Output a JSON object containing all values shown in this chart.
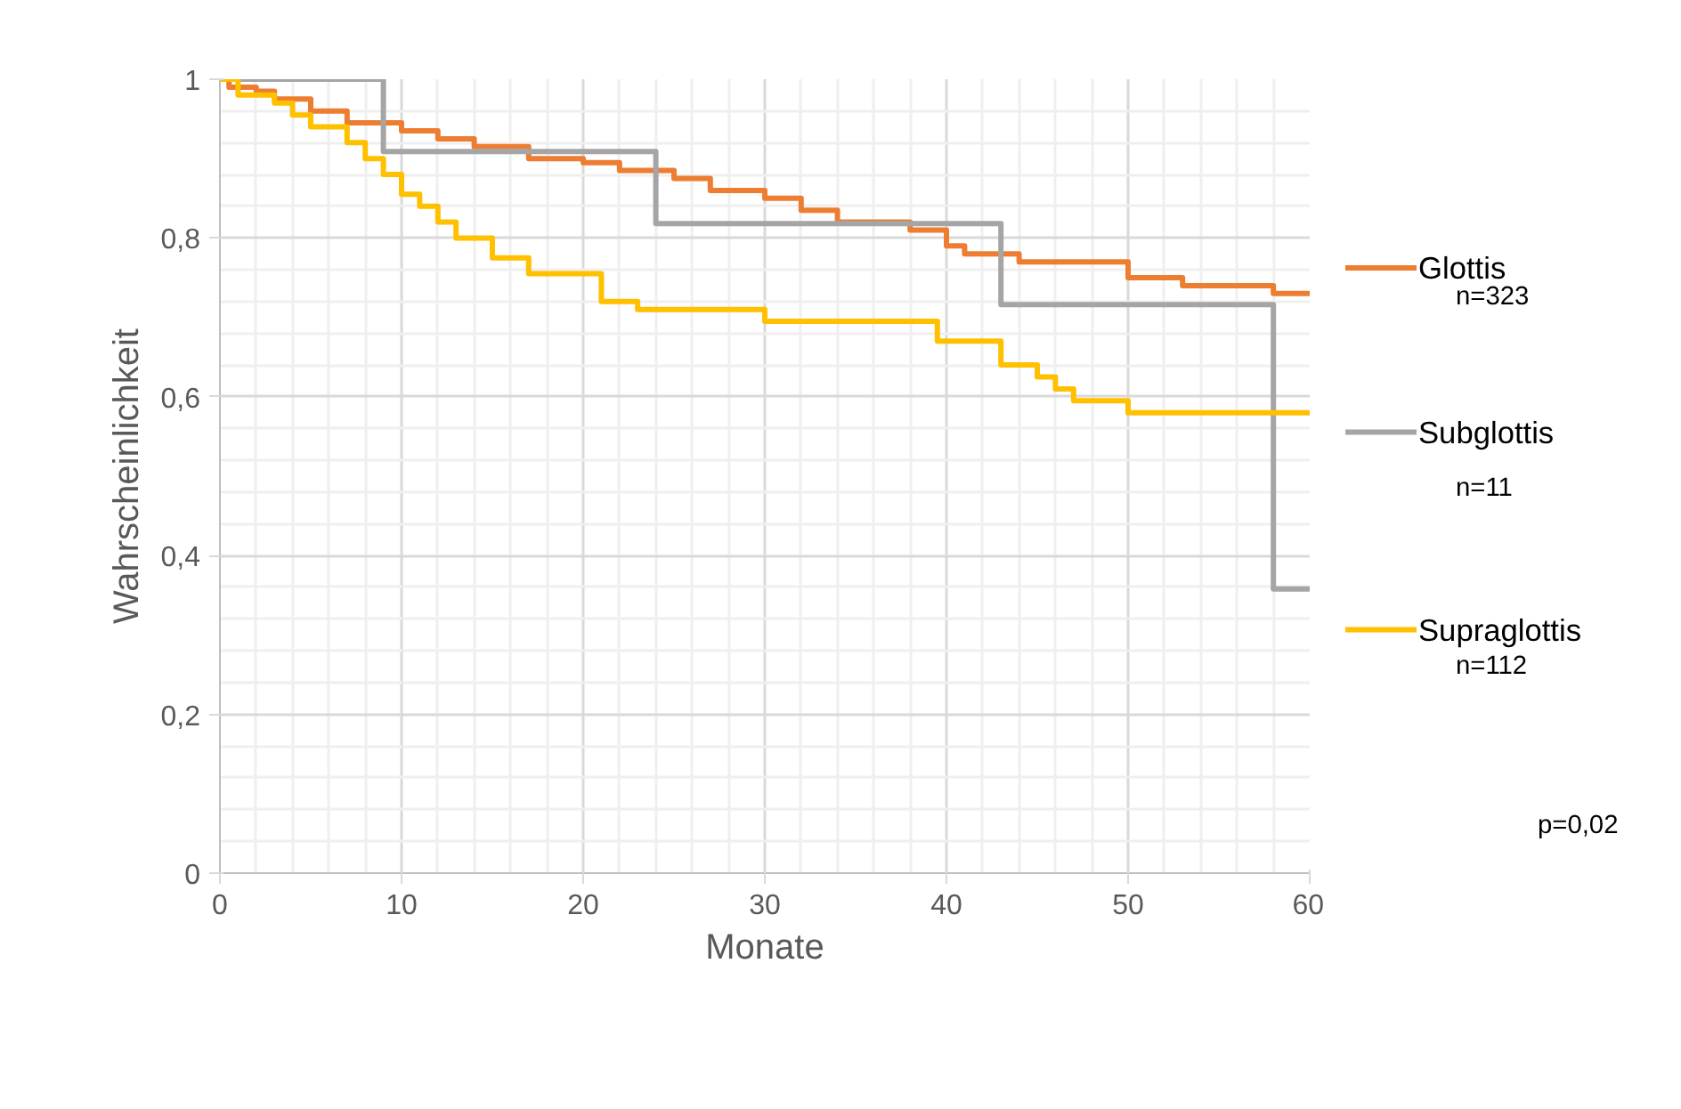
{
  "chart_data": {
    "type": "step",
    "xlabel": "Monate",
    "ylabel": "Wahrscheinlichkeit",
    "xlim": [
      0,
      60
    ],
    "xticks": [
      0,
      10,
      20,
      30,
      40,
      50,
      60
    ],
    "ylim": [
      0,
      1
    ],
    "yticks": [
      0,
      {
        "value": 0.2,
        "label": "0,2"
      },
      {
        "value": 0.4,
        "label": "0,4"
      },
      {
        "value": 0.6,
        "label": "0,6"
      },
      {
        "value": 0.8,
        "label": "0,8"
      },
      1
    ],
    "grid": true,
    "legend": "right",
    "series": [
      {
        "name": "Glottis",
        "color": "#ed7d31",
        "x": [
          0,
          0.5,
          2,
          3,
          5,
          7,
          10,
          12,
          14,
          17,
          20,
          22,
          25,
          27,
          30,
          32,
          34,
          38,
          40,
          41,
          44,
          50,
          53,
          58,
          60
        ],
        "values": [
          1,
          0.99,
          0.985,
          0.975,
          0.96,
          0.945,
          0.935,
          0.925,
          0.915,
          0.9,
          0.895,
          0.885,
          0.875,
          0.86,
          0.85,
          0.835,
          0.82,
          0.81,
          0.79,
          0.78,
          0.77,
          0.75,
          0.74,
          0.73,
          0.73
        ]
      },
      {
        "name": "Subglottis",
        "color": "#a5a5a5",
        "x": [
          0,
          9,
          24,
          43,
          58,
          60
        ],
        "values": [
          1,
          0.909,
          0.818,
          0.716,
          0.358,
          0.358
        ]
      },
      {
        "name": "Supraglottis",
        "color": "#ffc000",
        "x": [
          0,
          1,
          3,
          4,
          5,
          7,
          8,
          9,
          10,
          11,
          12,
          13,
          15,
          17,
          21,
          23,
          30,
          39.5,
          43,
          45,
          46,
          47,
          50,
          60
        ],
        "values": [
          1,
          0.98,
          0.97,
          0.955,
          0.94,
          0.92,
          0.9,
          0.88,
          0.855,
          0.84,
          0.82,
          0.8,
          0.775,
          0.755,
          0.72,
          0.71,
          0.695,
          0.67,
          0.64,
          0.625,
          0.61,
          0.595,
          0.58,
          0.58
        ]
      }
    ],
    "annotations": [
      "n=323",
      "n=11",
      "n=112",
      "p=0,02"
    ]
  }
}
